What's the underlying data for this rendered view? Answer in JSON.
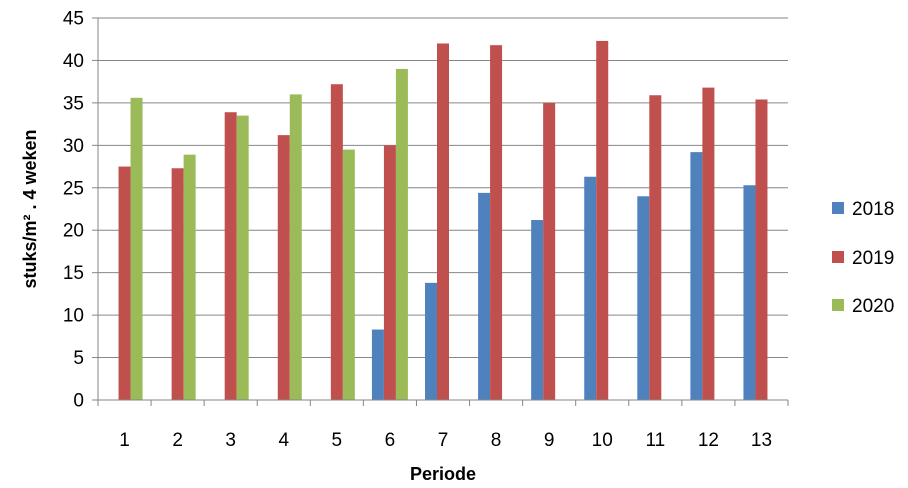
{
  "chart_data": {
    "type": "bar",
    "title": "",
    "xlabel": "Periode",
    "ylabel": "stuks/m² . 4 weken",
    "ylim": [
      0,
      45
    ],
    "yticks": [
      "0",
      "5",
      "10",
      "15",
      "20",
      "25",
      "30",
      "35",
      "40",
      "45"
    ],
    "categories": [
      "1",
      "2",
      "3",
      "4",
      "5",
      "6",
      "7",
      "8",
      "9",
      "10",
      "11",
      "12",
      "13"
    ],
    "grid": "horizontal major gridlines",
    "legend_position": "right",
    "series": [
      {
        "name": "2018",
        "color": "#4F81BD",
        "values": [
          null,
          null,
          null,
          null,
          null,
          8.3,
          13.8,
          24.4,
          21.2,
          26.3,
          24.0,
          29.2,
          25.3
        ]
      },
      {
        "name": "2019",
        "color": "#C0504D",
        "values": [
          27.5,
          27.3,
          33.9,
          31.2,
          37.2,
          30.0,
          42.0,
          41.8,
          35.0,
          42.3,
          35.9,
          36.8,
          35.4
        ]
      },
      {
        "name": "2020",
        "color": "#9BBB59",
        "values": [
          35.6,
          28.9,
          33.5,
          36.0,
          29.5,
          39.0,
          null,
          null,
          null,
          null,
          null,
          null,
          null
        ]
      }
    ]
  }
}
